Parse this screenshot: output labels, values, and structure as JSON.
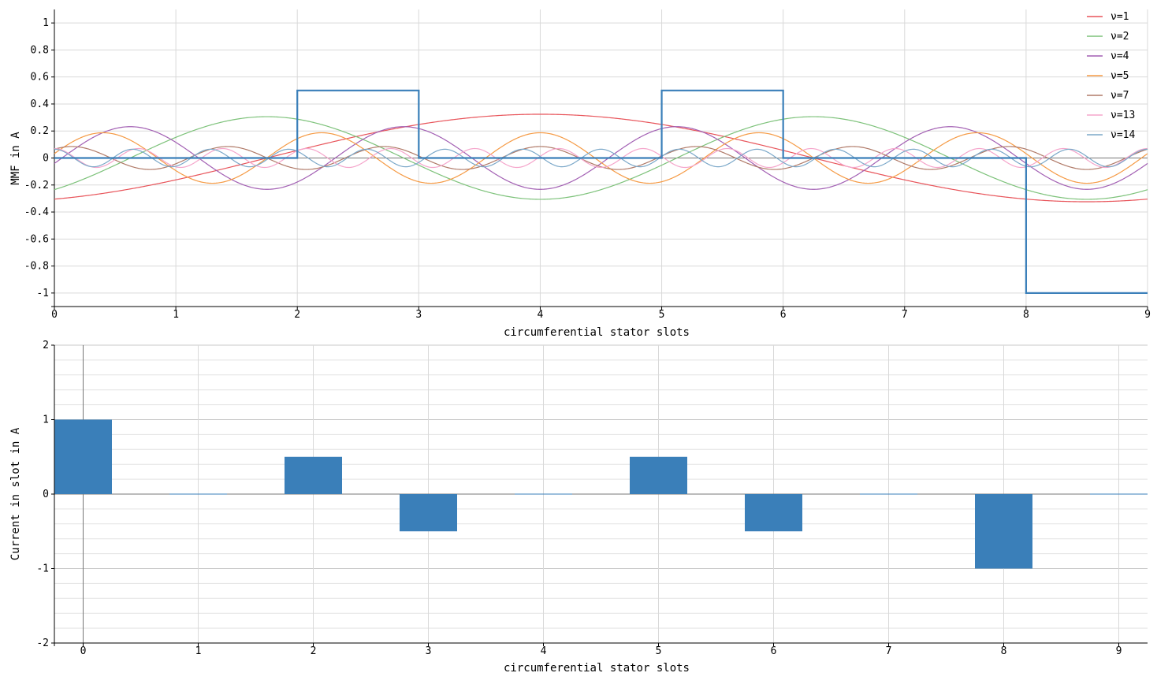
{
  "chart_data": [
    {
      "type": "line",
      "title": "",
      "xlabel": "circumferential stator slots",
      "ylabel": "MMF in A",
      "xlim": [
        0,
        9
      ],
      "ylim": [
        -1.1,
        1.1
      ],
      "xticks": [
        "0",
        "1",
        "2",
        "3",
        "4",
        "5",
        "6",
        "7",
        "8",
        "9"
      ],
      "yticks": [
        "1",
        "0.8",
        "0.6",
        "0.4",
        "0.2",
        "0",
        "-0.2",
        "-0.4",
        "-0.6",
        "-0.8",
        "-1"
      ],
      "grid": true,
      "legend_position": "top-right",
      "mmf_step": {
        "x": [
          0,
          2,
          2,
          3,
          3,
          5,
          5,
          6,
          6,
          8,
          8,
          9
        ],
        "y": [
          0,
          0,
          0.5,
          0.5,
          0,
          0,
          0.5,
          0.5,
          0,
          0,
          -1,
          -1
        ],
        "color": "#3a7fb9"
      },
      "series": [
        {
          "name": "ν=1",
          "harmonic": 1,
          "amplitude": 0.324,
          "peak_x": 4.0,
          "color": "#e8545a"
        },
        {
          "name": "ν=2",
          "harmonic": 2,
          "amplitude": 0.306,
          "peak_x": 1.75,
          "color": "#7dc27a"
        },
        {
          "name": "ν=4",
          "harmonic": 4,
          "amplitude": 0.232,
          "peak_x": 0.625,
          "color": "#a25fb3"
        },
        {
          "name": "ν=5",
          "harmonic": 5,
          "amplitude": 0.187,
          "peak_x": 0.4,
          "color": "#f59a44"
        },
        {
          "name": "ν=7",
          "harmonic": 7,
          "amplitude": 0.085,
          "peak_x": 0.143,
          "color": "#b07a68"
        },
        {
          "name": "ν=13",
          "harmonic": 13,
          "amplitude": 0.07,
          "peak_x": 0.0,
          "color": "#f5a5cb"
        },
        {
          "name": "ν=14",
          "harmonic": 14,
          "amplitude": 0.065,
          "peak_x": 0.0,
          "color": "#7ba8c9"
        }
      ]
    },
    {
      "type": "bar",
      "title": "",
      "xlabel": "circumferential stator slots",
      "ylabel": "Current in slot in A",
      "categories": [
        "0",
        "1",
        "2",
        "3",
        "4",
        "5",
        "6",
        "7",
        "8",
        "9"
      ],
      "values": [
        1,
        0,
        0.5,
        -0.5,
        0,
        0.5,
        -0.5,
        0,
        -1,
        0
      ],
      "ylim": [
        -2,
        2
      ],
      "yticks": [
        "2",
        "1",
        "0",
        "-1",
        "-2"
      ],
      "grid": true,
      "color": "#3a7fb9"
    }
  ]
}
